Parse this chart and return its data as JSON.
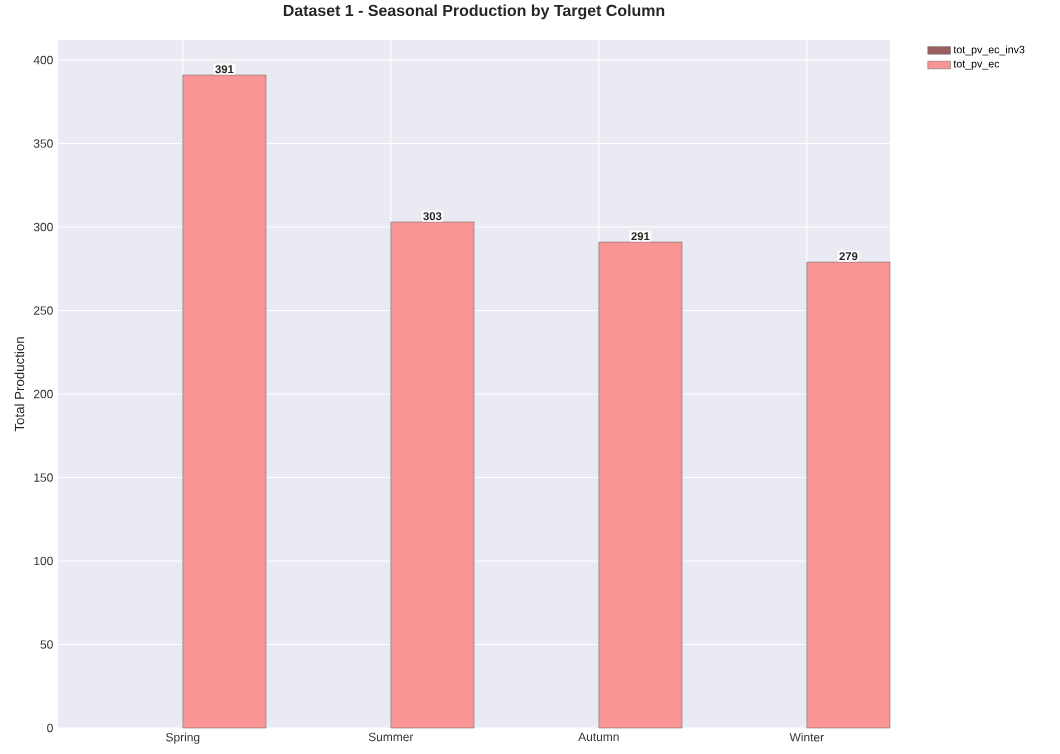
{
  "chart_data": {
    "type": "bar",
    "title": "Dataset 1 - Seasonal Production by Target Column",
    "ylabel": "Total Production",
    "categories": [
      "Spring",
      "Summer",
      "Autumn",
      "Winter"
    ],
    "series": [
      {
        "name": "tot_pv_ec_inv3",
        "color": "#9b5f5f",
        "values": [
          null,
          null,
          null,
          null
        ]
      },
      {
        "name": "tot_pv_ec",
        "color": "#fa9595",
        "values": [
          391,
          303,
          291,
          279
        ],
        "value_labels": [
          "391",
          "303",
          "291",
          "279"
        ]
      }
    ],
    "ylim": [
      0,
      412
    ],
    "yticks": [
      0,
      50,
      100,
      150,
      200,
      250,
      300,
      350,
      400
    ],
    "grid": true,
    "legend": "top right"
  }
}
